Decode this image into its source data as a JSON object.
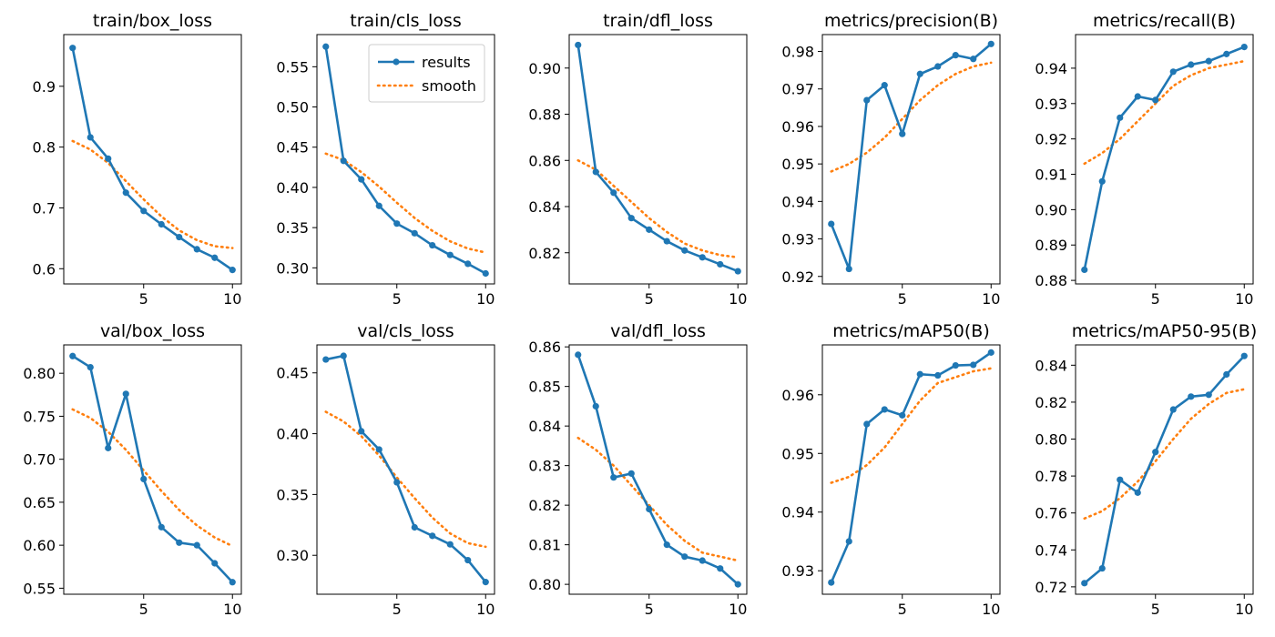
{
  "legend": {
    "items": [
      {
        "label": "results",
        "color": "#1f77b4",
        "style": "line-marker"
      },
      {
        "label": "smooth",
        "color": "#ff7f0e",
        "style": "dotted"
      }
    ],
    "placement": "top-right of second panel"
  },
  "chart_data": [
    {
      "type": "line",
      "title": "train/box_loss",
      "x": [
        1,
        2,
        3,
        4,
        5,
        6,
        7,
        8,
        9,
        10
      ],
      "xticks": [
        5,
        10
      ],
      "xlim": [
        0.5,
        10.5
      ],
      "ylim": [
        0.575,
        0.985
      ],
      "yticks": [
        0.6,
        0.7,
        0.8,
        0.9
      ],
      "ytick_decimals": 1,
      "series": [
        {
          "name": "results",
          "values": [
            0.963,
            0.816,
            0.781,
            0.725,
            0.695,
            0.673,
            0.652,
            0.632,
            0.618,
            0.598
          ]
        },
        {
          "name": "smooth",
          "values": [
            0.81,
            0.796,
            0.774,
            0.744,
            0.714,
            0.686,
            0.663,
            0.647,
            0.637,
            0.634
          ]
        }
      ]
    },
    {
      "type": "line",
      "title": "train/cls_loss",
      "x": [
        1,
        2,
        3,
        4,
        5,
        6,
        7,
        8,
        9,
        10
      ],
      "xticks": [
        5,
        10
      ],
      "xlim": [
        0.5,
        10.5
      ],
      "ylim": [
        0.28,
        0.59
      ],
      "yticks": [
        0.3,
        0.35,
        0.4,
        0.45,
        0.5,
        0.55
      ],
      "ytick_decimals": 2,
      "series": [
        {
          "name": "results",
          "values": [
            0.575,
            0.433,
            0.41,
            0.377,
            0.355,
            0.343,
            0.328,
            0.316,
            0.305,
            0.293
          ]
        },
        {
          "name": "smooth",
          "values": [
            0.442,
            0.434,
            0.419,
            0.401,
            0.381,
            0.362,
            0.346,
            0.333,
            0.324,
            0.319
          ]
        }
      ]
    },
    {
      "type": "line",
      "title": "train/dfl_loss",
      "x": [
        1,
        2,
        3,
        4,
        5,
        6,
        7,
        8,
        9,
        10
      ],
      "xticks": [
        5,
        10
      ],
      "xlim": [
        0.5,
        10.5
      ],
      "ylim": [
        0.8065,
        0.9145
      ],
      "yticks": [
        0.82,
        0.84,
        0.86,
        0.88,
        0.9
      ],
      "ytick_decimals": 2,
      "series": [
        {
          "name": "results",
          "values": [
            0.91,
            0.855,
            0.846,
            0.835,
            0.83,
            0.825,
            0.821,
            0.818,
            0.815,
            0.812
          ]
        },
        {
          "name": "smooth",
          "values": [
            0.86,
            0.856,
            0.849,
            0.842,
            0.835,
            0.829,
            0.824,
            0.821,
            0.819,
            0.818
          ]
        }
      ]
    },
    {
      "type": "line",
      "title": "metrics/precision(B)",
      "x": [
        1,
        2,
        3,
        4,
        5,
        6,
        7,
        8,
        9,
        10
      ],
      "xticks": [
        5,
        10
      ],
      "xlim": [
        0.5,
        10.5
      ],
      "ylim": [
        0.918,
        0.9845
      ],
      "yticks": [
        0.92,
        0.93,
        0.94,
        0.95,
        0.96,
        0.97,
        0.98
      ],
      "ytick_decimals": 2,
      "series": [
        {
          "name": "results",
          "values": [
            0.934,
            0.922,
            0.967,
            0.971,
            0.958,
            0.974,
            0.976,
            0.979,
            0.978,
            0.982
          ]
        },
        {
          "name": "smooth",
          "values": [
            0.948,
            0.95,
            0.953,
            0.957,
            0.962,
            0.967,
            0.971,
            0.974,
            0.976,
            0.977
          ]
        }
      ]
    },
    {
      "type": "line",
      "title": "metrics/recall(B)",
      "x": [
        1,
        2,
        3,
        4,
        5,
        6,
        7,
        8,
        9,
        10
      ],
      "xticks": [
        5,
        10
      ],
      "xlim": [
        0.5,
        10.5
      ],
      "ylim": [
        0.879,
        0.9495
      ],
      "yticks": [
        0.88,
        0.89,
        0.9,
        0.91,
        0.92,
        0.93,
        0.94
      ],
      "ytick_decimals": 2,
      "series": [
        {
          "name": "results",
          "values": [
            0.883,
            0.908,
            0.926,
            0.932,
            0.931,
            0.939,
            0.941,
            0.942,
            0.944,
            0.946
          ]
        },
        {
          "name": "smooth",
          "values": [
            0.913,
            0.916,
            0.92,
            0.925,
            0.93,
            0.935,
            0.938,
            0.94,
            0.941,
            0.942
          ]
        }
      ]
    },
    {
      "type": "line",
      "title": "val/box_loss",
      "x": [
        1,
        2,
        3,
        4,
        5,
        6,
        7,
        8,
        9,
        10
      ],
      "xticks": [
        5,
        10
      ],
      "xlim": [
        0.5,
        10.5
      ],
      "ylim": [
        0.543,
        0.833
      ],
      "yticks": [
        0.55,
        0.6,
        0.65,
        0.7,
        0.75,
        0.8
      ],
      "ytick_decimals": 2,
      "series": [
        {
          "name": "results",
          "values": [
            0.82,
            0.807,
            0.713,
            0.776,
            0.677,
            0.621,
            0.603,
            0.6,
            0.579,
            0.557
          ]
        },
        {
          "name": "smooth",
          "values": [
            0.758,
            0.748,
            0.732,
            0.711,
            0.687,
            0.663,
            0.641,
            0.623,
            0.609,
            0.599
          ]
        }
      ]
    },
    {
      "type": "line",
      "title": "val/cls_loss",
      "x": [
        1,
        2,
        3,
        4,
        5,
        6,
        7,
        8,
        9,
        10
      ],
      "xticks": [
        5,
        10
      ],
      "xlim": [
        0.5,
        10.5
      ],
      "ylim": [
        0.268,
        0.473
      ],
      "yticks": [
        0.3,
        0.35,
        0.4,
        0.45
      ],
      "ytick_decimals": 2,
      "series": [
        {
          "name": "results",
          "values": [
            0.461,
            0.464,
            0.402,
            0.387,
            0.36,
            0.323,
            0.316,
            0.309,
            0.296,
            0.278
          ]
        },
        {
          "name": "smooth",
          "values": [
            0.418,
            0.41,
            0.398,
            0.382,
            0.364,
            0.347,
            0.331,
            0.318,
            0.31,
            0.307
          ]
        }
      ]
    },
    {
      "type": "line",
      "title": "val/dfl_loss",
      "x": [
        1,
        2,
        3,
        4,
        5,
        6,
        7,
        8,
        9,
        10
      ],
      "xticks": [
        5,
        10
      ],
      "xlim": [
        0.5,
        10.5
      ],
      "ylim": [
        0.7975,
        0.8605
      ],
      "yticks": [
        0.8,
        0.81,
        0.82,
        0.83,
        0.84,
        0.85,
        0.86
      ],
      "ytick_decimals": 2,
      "series": [
        {
          "name": "results",
          "values": [
            0.858,
            0.845,
            0.827,
            0.828,
            0.819,
            0.81,
            0.807,
            0.806,
            0.804,
            0.8
          ]
        },
        {
          "name": "smooth",
          "values": [
            0.837,
            0.834,
            0.83,
            0.825,
            0.82,
            0.815,
            0.811,
            0.808,
            0.807,
            0.806
          ]
        }
      ]
    },
    {
      "type": "line",
      "title": "metrics/mAP50(B)",
      "x": [
        1,
        2,
        3,
        4,
        5,
        6,
        7,
        8,
        9,
        10
      ],
      "xticks": [
        5,
        10
      ],
      "xlim": [
        0.5,
        10.5
      ],
      "ylim": [
        0.926,
        0.9685
      ],
      "yticks": [
        0.93,
        0.94,
        0.95,
        0.96
      ],
      "ytick_decimals": 2,
      "series": [
        {
          "name": "results",
          "values": [
            0.928,
            0.935,
            0.955,
            0.9575,
            0.9565,
            0.9635,
            0.9633,
            0.965,
            0.9651,
            0.9672
          ]
        },
        {
          "name": "smooth",
          "values": [
            0.945,
            0.946,
            0.948,
            0.951,
            0.955,
            0.959,
            0.962,
            0.963,
            0.964,
            0.9645
          ]
        }
      ]
    },
    {
      "type": "line",
      "title": "metrics/mAP50-95(B)",
      "x": [
        1,
        2,
        3,
        4,
        5,
        6,
        7,
        8,
        9,
        10
      ],
      "xticks": [
        5,
        10
      ],
      "xlim": [
        0.5,
        10.5
      ],
      "ylim": [
        0.716,
        0.851
      ],
      "yticks": [
        0.72,
        0.74,
        0.76,
        0.78,
        0.8,
        0.82,
        0.84
      ],
      "ytick_decimals": 2,
      "series": [
        {
          "name": "results",
          "values": [
            0.722,
            0.73,
            0.778,
            0.771,
            0.793,
            0.816,
            0.823,
            0.824,
            0.835,
            0.845
          ]
        },
        {
          "name": "smooth",
          "values": [
            0.757,
            0.761,
            0.768,
            0.777,
            0.788,
            0.8,
            0.811,
            0.819,
            0.825,
            0.827
          ]
        }
      ]
    }
  ]
}
